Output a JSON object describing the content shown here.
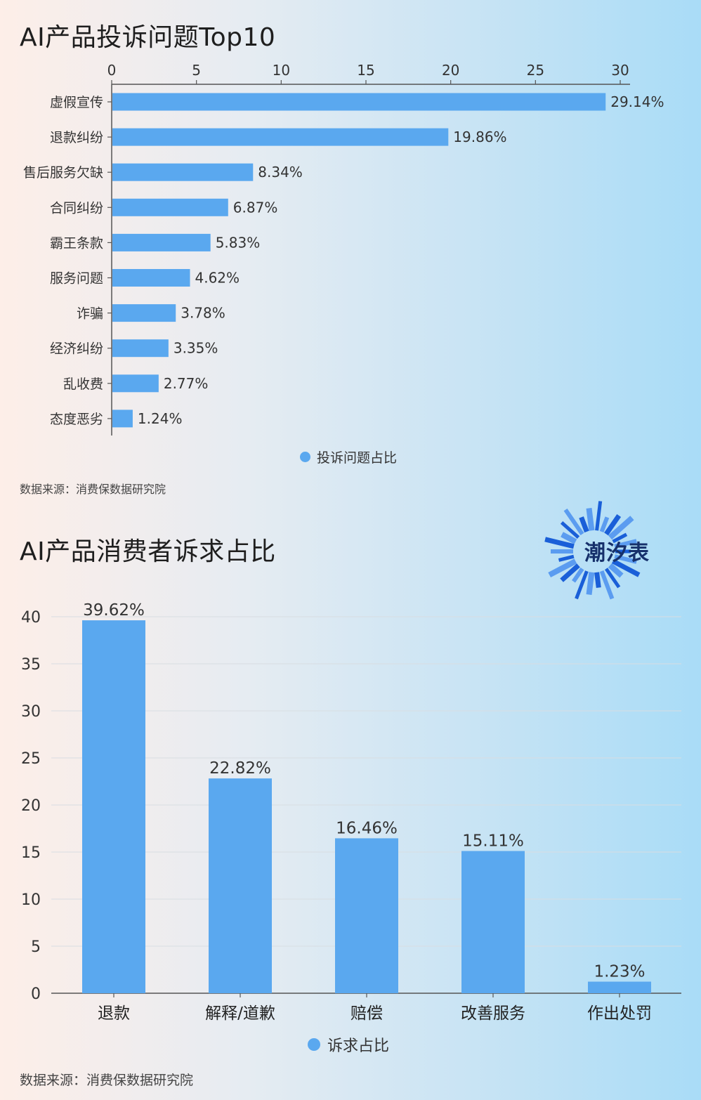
{
  "colors": {
    "bar": "#5aa8ef",
    "axis": "#555555",
    "grid": "#d8dde2",
    "logo": "#1a5fd8"
  },
  "charts": [
    {
      "title": "AI产品投诉问题Top10",
      "legend": "投诉问题占比",
      "source": "数据来源：消费保数据研究院"
    },
    {
      "title": "AI产品消费者诉求占比",
      "legend": "诉求占比",
      "source": "数据来源：消费保数据研究院"
    }
  ],
  "logo": {
    "text": "潮汐表",
    "icon": "burst-logo-icon"
  },
  "chart_data": [
    {
      "type": "bar",
      "orientation": "horizontal",
      "title": "AI产品投诉问题Top10",
      "categories": [
        "虚假宣传",
        "退款纠纷",
        "售后服务欠缺",
        "合同纠纷",
        "霸王条款",
        "服务问题",
        "诈骗",
        "经济纠纷",
        "乱收费",
        "态度恶劣"
      ],
      "series": [
        {
          "name": "投诉问题占比",
          "values": [
            29.14,
            19.86,
            8.34,
            6.87,
            5.83,
            4.62,
            3.78,
            3.35,
            2.77,
            1.24
          ]
        }
      ],
      "data_labels": [
        "29.14%",
        "19.86%",
        "8.34%",
        "6.87%",
        "5.83%",
        "4.62%",
        "3.78%",
        "3.35%",
        "2.77%",
        "1.24%"
      ],
      "xticks": [
        0,
        5,
        10,
        15,
        20,
        25,
        30
      ],
      "xlim": [
        0,
        30
      ],
      "axis_position": "top",
      "grid": false,
      "legend_position": "bottom"
    },
    {
      "type": "bar",
      "orientation": "vertical",
      "title": "AI产品消费者诉求占比",
      "categories": [
        "退款",
        "解释/道歉",
        "赔偿",
        "改善服务",
        "作出处罚"
      ],
      "series": [
        {
          "name": "诉求占比",
          "values": [
            39.62,
            22.82,
            16.46,
            15.11,
            1.23
          ]
        }
      ],
      "data_labels": [
        "39.62%",
        "22.82%",
        "16.46%",
        "15.11%",
        "1.23%"
      ],
      "yticks": [
        0,
        5,
        10,
        15,
        20,
        25,
        30,
        35,
        40
      ],
      "ylim": [
        0,
        40
      ],
      "grid": true,
      "legend_position": "bottom"
    }
  ]
}
